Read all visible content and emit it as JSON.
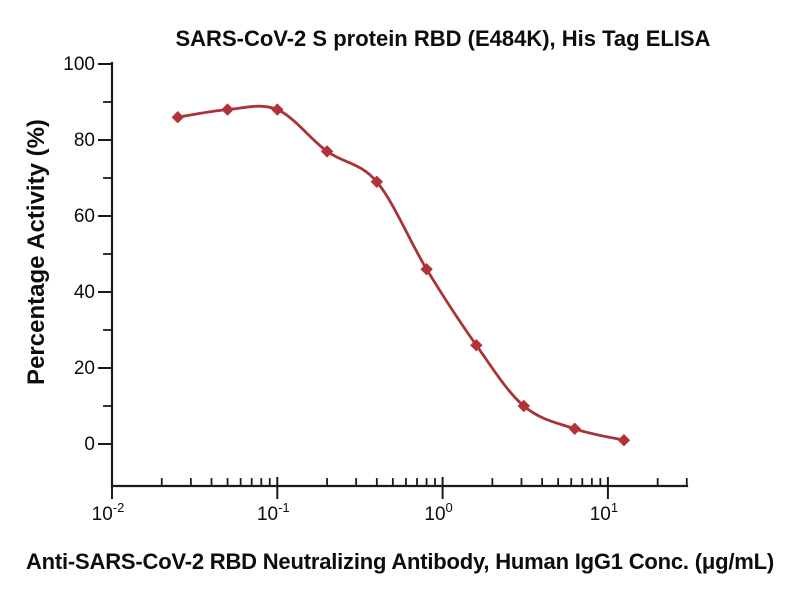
{
  "chart_data": {
    "type": "line",
    "title": "SARS-CoV-2 S protein RBD (E484K), His Tag ELISA",
    "xlabel": "Anti-SARS-CoV-2 RBD Neutralizing Antibody, Human IgG1 Conc. (μg/mL)",
    "ylabel": "Percentage Activity (%)",
    "x_scale": "log10",
    "x": [
      0.025,
      0.05,
      0.1,
      0.2,
      0.4,
      0.8,
      1.6,
      3.1,
      6.3,
      12.5
    ],
    "y": [
      86,
      88,
      88,
      77,
      69,
      46,
      26,
      10,
      4,
      1
    ],
    "series_name": "Anti-SARS-CoV-2 RBD Neutralizing Antibody",
    "marker": "diamond",
    "legend_position": "none",
    "grid": false,
    "xlim_log": [
      -2,
      1.477
    ],
    "ylim": [
      0,
      100
    ],
    "x_major_ticks": [
      {
        "base": "10",
        "exp": "-2",
        "value": 0.01
      },
      {
        "base": "10",
        "exp": "-1",
        "value": 0.1
      },
      {
        "base": "10",
        "exp": "0",
        "value": 1
      },
      {
        "base": "10",
        "exp": "1",
        "value": 10
      }
    ],
    "x_minor_tick_values": [
      0.02,
      0.03,
      0.04,
      0.05,
      0.06,
      0.07,
      0.08,
      0.09,
      0.2,
      0.3,
      0.4,
      0.5,
      0.6,
      0.7,
      0.8,
      0.9,
      2,
      3,
      4,
      5,
      6,
      7,
      8,
      9,
      20,
      30
    ],
    "y_major_ticks": [
      0,
      20,
      40,
      60,
      80,
      100
    ],
    "y_minor_ticks": [
      10,
      30,
      50,
      70,
      90
    ],
    "colors": {
      "line": "#A93438",
      "marker": "#B23237",
      "axis": "#1a1a1a",
      "text": "#0d0d0d"
    }
  }
}
